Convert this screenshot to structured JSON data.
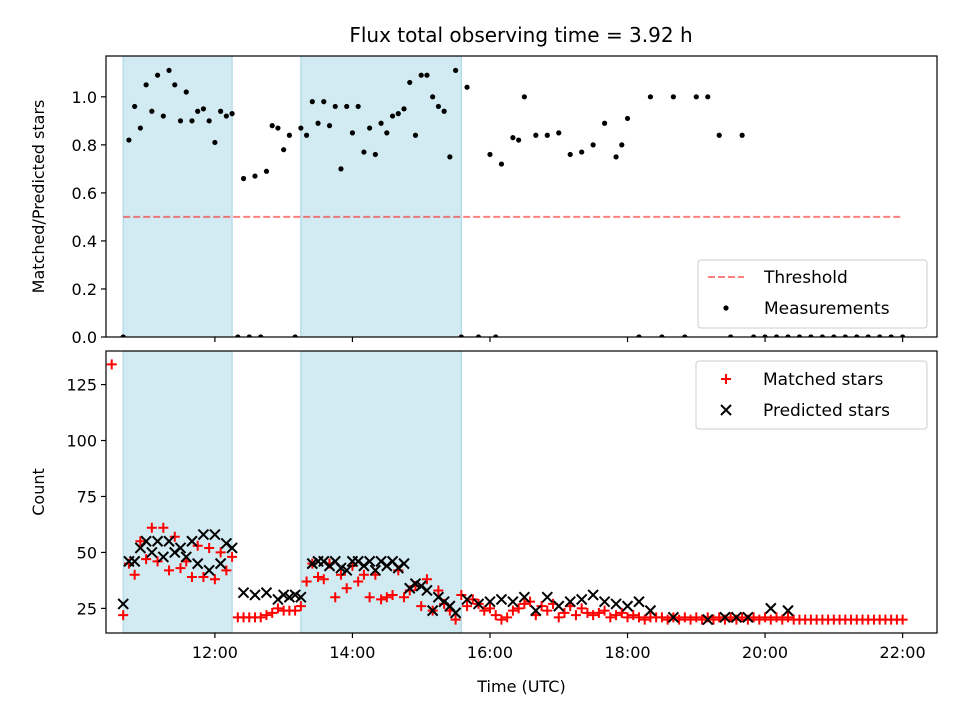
{
  "title": "Flux total observing time = 3.92 h",
  "colors": {
    "shade": "#add8e6",
    "threshold": "#ff0000",
    "measurement": "#000000",
    "matched": "#ff0000",
    "predicted": "#000000"
  },
  "chart_data": [
    {
      "type": "scatter",
      "position": "top",
      "ylabel": "Matched/Predicted stars",
      "xlabel": "",
      "xlim": [
        "10:25",
        "22:30"
      ],
      "ylim": [
        0,
        1.17
      ],
      "yticks": [
        0.0,
        0.2,
        0.4,
        0.6,
        0.8,
        1.0
      ],
      "ytick_labels": [
        "0.0",
        "0.2",
        "0.4",
        "0.6",
        "0.8",
        "1.0"
      ],
      "shaded_intervals": [
        [
          "10:40",
          "12:15"
        ],
        [
          "13:15",
          "15:35"
        ]
      ],
      "threshold": {
        "name": "Threshold",
        "value": 0.5,
        "x_range": [
          "10:40",
          "22:00"
        ],
        "style": "dashed"
      },
      "legend": {
        "placement": "lower right",
        "entries": [
          "Threshold",
          "Measurements"
        ]
      },
      "series": [
        {
          "name": "Measurements",
          "x": [
            "10:40",
            "10:45",
            "10:50",
            "10:55",
            "11:00",
            "11:05",
            "11:10",
            "11:15",
            "11:20",
            "11:25",
            "11:30",
            "11:35",
            "11:40",
            "11:45",
            "11:50",
            "11:55",
            "12:00",
            "12:05",
            "12:10",
            "12:15",
            "12:20",
            "12:25",
            "12:30",
            "12:35",
            "12:40",
            "12:45",
            "12:50",
            "12:55",
            "13:00",
            "13:05",
            "13:10",
            "13:15",
            "13:20",
            "13:25",
            "13:30",
            "13:35",
            "13:40",
            "13:45",
            "13:50",
            "13:55",
            "14:00",
            "14:05",
            "14:10",
            "14:15",
            "14:20",
            "14:25",
            "14:30",
            "14:35",
            "14:40",
            "14:45",
            "14:50",
            "14:55",
            "15:00",
            "15:05",
            "15:10",
            "15:15",
            "15:20",
            "15:25",
            "15:30",
            "15:35",
            "15:40",
            "15:50",
            "16:00",
            "16:05",
            "16:10",
            "16:20",
            "16:25",
            "16:30",
            "16:40",
            "16:50",
            "17:00",
            "17:10",
            "17:20",
            "17:30",
            "17:40",
            "17:50",
            "17:55",
            "18:00",
            "18:10",
            "18:20",
            "18:30",
            "18:40",
            "18:50",
            "19:00",
            "19:10",
            "19:20",
            "19:30",
            "19:40",
            "19:50",
            "20:00",
            "20:10",
            "20:20",
            "20:30",
            "20:40",
            "20:50",
            "21:00",
            "21:10",
            "21:20",
            "21:30",
            "21:40",
            "21:50",
            "22:00"
          ],
          "y": [
            0,
            0.82,
            0.96,
            0.87,
            1.05,
            0.94,
            1.09,
            0.92,
            1.11,
            1.05,
            0.9,
            1.02,
            0.9,
            0.94,
            0.95,
            0.9,
            0.81,
            0.94,
            0.92,
            0.93,
            0,
            0.66,
            0,
            0.67,
            0,
            0.69,
            0.88,
            0.87,
            0.78,
            0.84,
            0,
            0.87,
            0.84,
            0.98,
            0.89,
            0.98,
            0.88,
            0.96,
            0.7,
            0.96,
            0.85,
            0.96,
            0.77,
            0.87,
            0.76,
            0.89,
            0.85,
            0.92,
            0.93,
            0.95,
            1.06,
            0.84,
            1.09,
            1.09,
            1.0,
            0.96,
            0.94,
            0.75,
            1.11,
            0,
            1.04,
            0,
            0.76,
            0,
            0.72,
            0.83,
            0.82,
            1.0,
            0.84,
            0.84,
            0.85,
            0.76,
            0.77,
            0.8,
            0.89,
            0.75,
            0.8,
            0.91,
            0,
            1.0,
            0,
            1.0,
            0,
            1.0,
            1.0,
            0.84,
            0,
            0.84,
            0,
            0,
            0,
            0,
            0,
            0,
            0,
            0,
            0,
            0,
            0,
            0,
            0,
            0
          ]
        }
      ]
    },
    {
      "type": "scatter",
      "position": "bottom",
      "ylabel": "Count",
      "xlabel": "Time (UTC)",
      "xlim": [
        "10:25",
        "22:30"
      ],
      "ylim": [
        14,
        140
      ],
      "yticks": [
        25,
        50,
        75,
        100,
        125
      ],
      "ytick_labels": [
        "25",
        "50",
        "75",
        "100",
        "125"
      ],
      "xticks": [
        "12:00",
        "14:00",
        "16:00",
        "18:00",
        "20:00",
        "22:00"
      ],
      "xtick_labels": [
        "12:00",
        "14:00",
        "16:00",
        "18:00",
        "20:00",
        "22:00"
      ],
      "shaded_intervals": [
        [
          "10:40",
          "12:15"
        ],
        [
          "13:15",
          "15:35"
        ]
      ],
      "legend": {
        "placement": "upper right",
        "entries": [
          "Matched stars",
          "Predicted stars"
        ]
      },
      "series": [
        {
          "name": "Matched stars",
          "marker": "+",
          "x": [
            "10:30",
            "10:40",
            "10:45",
            "10:50",
            "10:55",
            "11:00",
            "11:05",
            "11:10",
            "11:15",
            "11:20",
            "11:25",
            "11:30",
            "11:35",
            "11:40",
            "11:45",
            "11:50",
            "11:55",
            "12:00",
            "12:05",
            "12:10",
            "12:15",
            "12:20",
            "12:25",
            "12:30",
            "12:35",
            "12:40",
            "12:45",
            "12:50",
            "12:55",
            "13:00",
            "13:05",
            "13:10",
            "13:15",
            "13:20",
            "13:25",
            "13:30",
            "13:35",
            "13:40",
            "13:45",
            "13:50",
            "13:55",
            "14:00",
            "14:05",
            "14:10",
            "14:15",
            "14:20",
            "14:25",
            "14:30",
            "14:35",
            "14:40",
            "14:45",
            "14:50",
            "14:55",
            "15:00",
            "15:05",
            "15:10",
            "15:15",
            "15:20",
            "15:25",
            "15:30",
            "15:35",
            "15:40",
            "15:45",
            "15:50",
            "15:55",
            "16:00",
            "16:05",
            "16:10",
            "16:15",
            "16:20",
            "16:25",
            "16:30",
            "16:35",
            "16:40",
            "16:45",
            "16:50",
            "16:55",
            "17:00",
            "17:05",
            "17:10",
            "17:15",
            "17:20",
            "17:25",
            "17:30",
            "17:35",
            "17:40",
            "17:45",
            "17:50",
            "17:55",
            "18:00",
            "18:05",
            "18:10",
            "18:15",
            "18:20",
            "18:25",
            "18:30",
            "18:35",
            "18:40",
            "18:45",
            "18:50",
            "18:55",
            "19:00",
            "19:05",
            "19:10",
            "19:15",
            "19:20",
            "19:25",
            "19:30",
            "19:35",
            "19:40",
            "19:45",
            "19:50",
            "19:55",
            "20:00",
            "20:05",
            "20:10",
            "20:15",
            "20:20",
            "20:25",
            "20:30",
            "20:35",
            "20:40",
            "20:45",
            "20:50",
            "20:55",
            "21:00",
            "21:05",
            "21:10",
            "21:15",
            "21:20",
            "21:25",
            "21:30",
            "21:35",
            "21:40",
            "21:45",
            "21:50",
            "21:55",
            "22:00"
          ],
          "y": [
            134,
            22,
            45,
            40,
            55,
            47,
            61,
            46,
            61,
            42,
            57,
            43,
            46,
            39,
            53,
            39,
            52,
            38,
            50,
            42,
            48,
            21,
            21,
            21,
            21,
            21,
            22,
            23,
            25,
            24,
            24,
            24,
            26,
            37,
            45,
            39,
            38,
            45,
            30,
            40,
            34,
            44,
            37,
            40,
            30,
            40,
            29,
            30,
            31,
            42,
            30,
            33,
            35,
            26,
            38,
            24,
            33,
            27,
            24,
            20,
            31,
            26,
            29,
            27,
            24,
            25,
            22,
            20,
            21,
            24,
            25,
            27,
            28,
            22,
            26,
            24,
            27,
            21,
            23,
            26,
            22,
            25,
            23,
            22,
            23,
            24,
            21,
            22,
            23,
            21,
            22,
            21,
            20,
            21,
            21,
            21,
            20,
            21,
            20,
            21,
            20,
            21,
            20,
            21,
            20,
            21,
            20,
            21,
            20,
            21,
            20,
            21,
            20,
            21,
            20,
            21,
            20,
            21,
            20,
            20,
            20,
            20,
            20,
            20,
            20,
            20,
            20,
            20,
            20,
            20,
            20,
            20,
            20,
            20,
            20,
            20,
            20,
            20
          ]
        },
        {
          "name": "Predicted stars",
          "marker": "x",
          "x": [
            "10:40",
            "10:45",
            "10:50",
            "10:55",
            "11:00",
            "11:05",
            "11:10",
            "11:15",
            "11:20",
            "11:25",
            "11:30",
            "11:35",
            "11:40",
            "11:45",
            "11:50",
            "11:55",
            "12:00",
            "12:05",
            "12:10",
            "12:15",
            "12:25",
            "12:35",
            "12:45",
            "12:55",
            "13:00",
            "13:05",
            "13:10",
            "13:15",
            "13:25",
            "13:30",
            "13:35",
            "13:40",
            "13:45",
            "13:50",
            "13:55",
            "14:00",
            "14:05",
            "14:10",
            "14:15",
            "14:20",
            "14:25",
            "14:30",
            "14:35",
            "14:40",
            "14:45",
            "14:50",
            "14:55",
            "15:00",
            "15:05",
            "15:10",
            "15:15",
            "15:20",
            "15:25",
            "15:30",
            "15:40",
            "15:50",
            "16:00",
            "16:10",
            "16:20",
            "16:30",
            "16:40",
            "16:50",
            "17:00",
            "17:10",
            "17:20",
            "17:30",
            "17:40",
            "17:50",
            "18:00",
            "18:10",
            "18:20",
            "18:40",
            "19:10",
            "19:25",
            "19:35",
            "19:45",
            "20:05",
            "20:20"
          ],
          "y": [
            27,
            46,
            46,
            52,
            55,
            50,
            55,
            48,
            55,
            50,
            52,
            48,
            55,
            45,
            58,
            42,
            58,
            45,
            54,
            52,
            32,
            31,
            32,
            29,
            31,
            30,
            31,
            30,
            45,
            46,
            46,
            44,
            46,
            43,
            42,
            46,
            46,
            44,
            46,
            42,
            46,
            44,
            46,
            43,
            45,
            34,
            36,
            35,
            33,
            24,
            30,
            28,
            26,
            23,
            29,
            27,
            28,
            29,
            28,
            30,
            24,
            30,
            26,
            28,
            29,
            31,
            28,
            27,
            26,
            28,
            24,
            21,
            20,
            21,
            21,
            21,
            25,
            24
          ]
        }
      ]
    }
  ]
}
